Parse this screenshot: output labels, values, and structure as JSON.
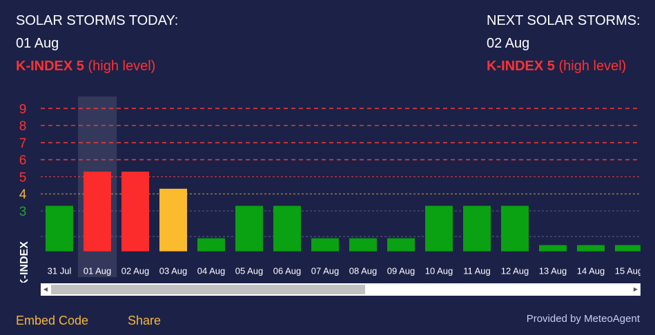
{
  "today": {
    "heading": "SOLAR STORMS TODAY:",
    "date": "01 Aug",
    "kindex_label": "K-INDEX 5",
    "level_text": "(high level)"
  },
  "next": {
    "heading": "NEXT SOLAR STORMS:",
    "date": "02 Aug",
    "kindex_label": "K-INDEX 5",
    "level_text": "(high level)"
  },
  "chart_data": {
    "type": "bar",
    "ylabel": "K-INDEX",
    "y_tick_labels": [
      {
        "value": 3,
        "label": "3",
        "color": "#22a52e"
      },
      {
        "value": 4,
        "label": "4",
        "color": "#f5b93a"
      },
      {
        "value": 5,
        "label": "5",
        "color": "#ff3333"
      },
      {
        "value": 6,
        "label": "6",
        "color": "#ff3333"
      },
      {
        "value": 7,
        "label": "7",
        "color": "#ff3333"
      },
      {
        "value": 8,
        "label": "8",
        "color": "#ff3333"
      },
      {
        "value": 9,
        "label": "9",
        "color": "#ff3333"
      }
    ],
    "ylim": [
      0.7,
      9.7
    ],
    "categories": [
      "31 Jul",
      "01 Aug",
      "02 Aug",
      "03 Aug",
      "04 Aug",
      "05 Aug",
      "06 Aug",
      "07 Aug",
      "08 Aug",
      "09 Aug",
      "10 Aug",
      "11 Aug",
      "12 Aug",
      "13 Aug",
      "14 Aug",
      "15 Aug"
    ],
    "values": [
      3.3,
      5.3,
      5.3,
      4.3,
      1.4,
      3.3,
      3.3,
      1.4,
      1.4,
      1.4,
      3.3,
      3.3,
      3.3,
      1.0,
      1.0,
      1.0
    ],
    "highlighted_category": "01 Aug",
    "colors": {
      "low": "#0aa112",
      "moderate": "#fbbb2e",
      "high": "#fc2c2c"
    },
    "grid": {
      "high": "#e83a3a",
      "moderate": "#c6a23a",
      "low": "#5a5f8e"
    }
  },
  "footer": {
    "embed_label": "Embed Code",
    "share_label": "Share",
    "provided_label": "Provided by MeteoAgent"
  },
  "scrollbar": {
    "left_arrow": "◀",
    "right_arrow": "▶"
  }
}
